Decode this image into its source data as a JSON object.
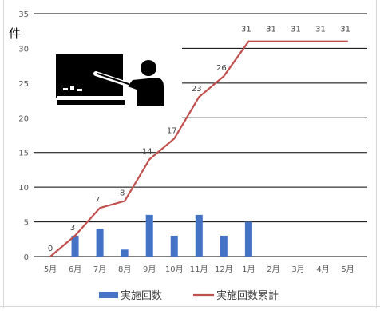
{
  "chart_data": {
    "type": "bar",
    "unit_label": "件",
    "categories": [
      "5月",
      "6月",
      "7月",
      "8月",
      "9月",
      "10月",
      "11月",
      "12月",
      "1月",
      "2月",
      "3月",
      "4月",
      "5月"
    ],
    "ylim": [
      0,
      35
    ],
    "yticks": [
      0,
      5,
      10,
      15,
      20,
      25,
      30,
      35
    ],
    "grid": true,
    "legend_position": "bottom",
    "series": [
      {
        "name": "実施回数",
        "type": "bar",
        "color": "#4472c4",
        "values": [
          0,
          3,
          4,
          1,
          6,
          3,
          6,
          3,
          5,
          null,
          null,
          null,
          null
        ]
      },
      {
        "name": "実施回数累計",
        "type": "line",
        "color": "#c0504d",
        "values": [
          0,
          3,
          7,
          8,
          14,
          17,
          23,
          26,
          31,
          31,
          31,
          31,
          31
        ],
        "data_labels": [
          "0",
          "3",
          "7",
          "8",
          "14",
          "17",
          "23",
          "26",
          "31",
          "31",
          "31",
          "31",
          "31"
        ]
      }
    ],
    "illustration_icon": "teacher-at-blackboard-icon"
  }
}
